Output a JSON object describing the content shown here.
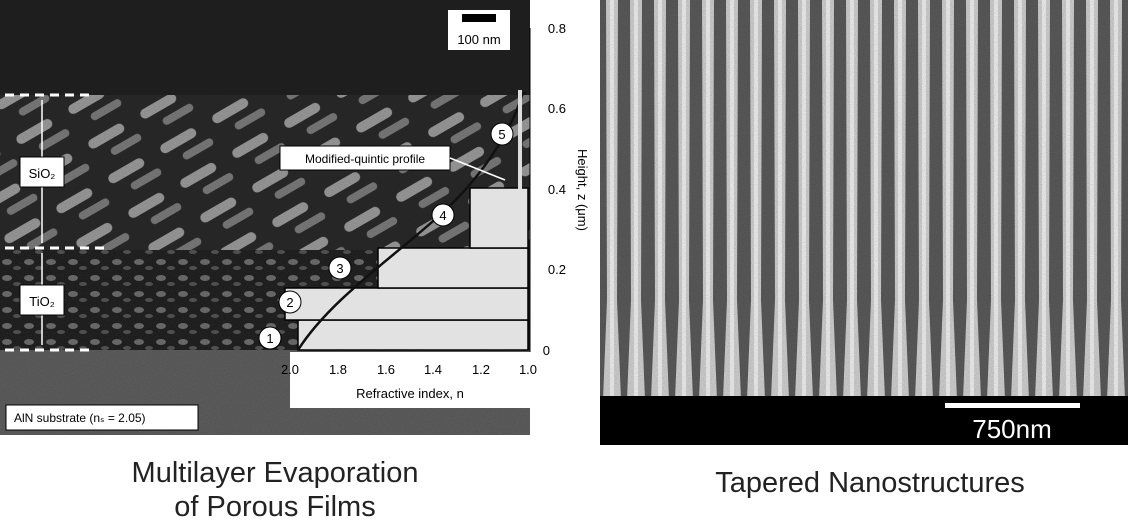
{
  "left_figure": {
    "scale_bar": "100 nm",
    "height_ticks": [
      "0.8",
      "0.6",
      "0.4",
      "0.2",
      "0"
    ],
    "height_label": "Height, z (μm)",
    "profile_label": "Modified-quintic profile",
    "points": [
      "1",
      "2",
      "3",
      "4",
      "5"
    ],
    "index_ticks": [
      "2.0",
      "1.8",
      "1.6",
      "1.4",
      "1.2",
      "1.0"
    ],
    "index_label": "Refractive index, n",
    "layer_top": "SiO₂",
    "layer_bottom": "TiO₂",
    "substrate": "AlN substrate (nₛ = 2.05)",
    "caption": [
      "Multilayer Evaporation",
      "of Porous Films"
    ]
  },
  "right_figure": {
    "scale_bar": "750nm",
    "caption": "Tapered Nanostructures"
  }
}
